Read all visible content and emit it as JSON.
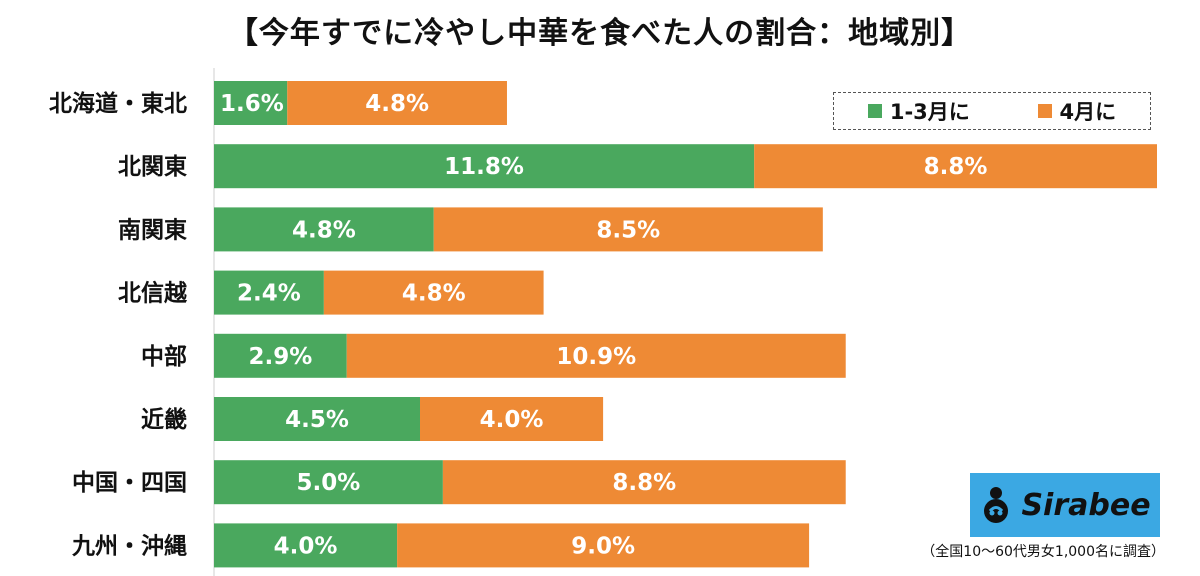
{
  "title": "【今年すでに冷やし中華を食べた人の割合：地域別】",
  "chart_data": {
    "type": "bar",
    "orientation": "horizontal",
    "stacked": true,
    "title": "【今年すでに冷やし中華を食べた人の割合：地域別】",
    "categories": [
      "北海道・東北",
      "北関東",
      "南関東",
      "北信越",
      "中部",
      "近畿",
      "中国・四国",
      "九州・沖縄"
    ],
    "series": [
      {
        "name": "1-3月に",
        "color": "#4aa85e",
        "values": [
          1.6,
          11.8,
          4.8,
          2.4,
          2.9,
          4.5,
          5.0,
          4.0
        ],
        "labels": [
          "1.6%",
          "11.8%",
          "4.8%",
          "2.4%",
          "2.9%",
          "4.5%",
          "5.0%",
          "4.0%"
        ]
      },
      {
        "name": "4月に",
        "color": "#ee8a35",
        "values": [
          4.8,
          8.8,
          8.5,
          4.8,
          10.9,
          4.0,
          8.8,
          9.0
        ],
        "labels": [
          "4.8%",
          "8.8%",
          "8.5%",
          "4.8%",
          "10.9%",
          "4.0%",
          "8.8%",
          "9.0%"
        ]
      }
    ],
    "xlim": [
      0,
      20.6
    ],
    "legend_position": "top-right",
    "grid": false
  },
  "brand": {
    "logo_text": "Sirabee",
    "color": "#3ba8e3"
  },
  "note": "（全国10〜60代男女1,000名に調査）"
}
